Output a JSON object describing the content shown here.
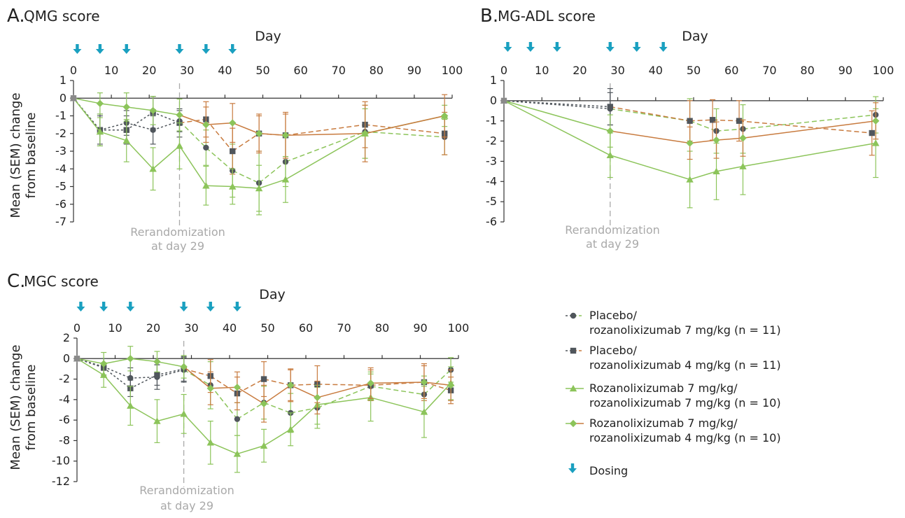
{
  "colors": {
    "dark": "#50565c",
    "orange": "#c87b3f",
    "green": "#8cc45a",
    "blue": "#1aa0c0",
    "rerand": "#a9a9a9"
  },
  "legend": {
    "items": [
      {
        "line1": "Placebo/",
        "line2": "rozanolixizumab 7 mg/kg (n = 11)",
        "marker": "circle",
        "before": "dark",
        "after": "green"
      },
      {
        "line1": "Placebo/",
        "line2": "rozanolixizumab 4 mg/kg (n = 11)",
        "marker": "square",
        "before": "dark",
        "after": "orange"
      },
      {
        "line1": "Rozanolixizumab 7 mg/kg/",
        "line2": "rozanolixizumab 7 mg/kg (n = 10)",
        "marker": "triangle",
        "before": "green",
        "after": "green"
      },
      {
        "line1": "Rozanolixizumab 7 mg/kg/",
        "line2": "rozanolixizumab 4 mg/kg (n = 10)",
        "marker": "diamond",
        "before": "green",
        "after": "orange"
      }
    ],
    "dosing_label": "Dosing"
  },
  "chart_data": [
    {
      "type": "line",
      "letter": "A.",
      "title": "QMG score",
      "xlabel": "Day",
      "ylabel_line1": "Mean (SEM) change",
      "ylabel_line2": "from baseline",
      "xlim": [
        0,
        100
      ],
      "ylim": [
        -7,
        1
      ],
      "xticks": [
        "0",
        "10",
        "20",
        "30",
        "40",
        "50",
        "60",
        "70",
        "80",
        "90",
        "100"
      ],
      "yticks": [
        "1",
        "0",
        "-1",
        "-2",
        "-3",
        "-4",
        "-5",
        "-6",
        "-7"
      ],
      "ytick_values": [
        1,
        0,
        -1,
        -2,
        -3,
        -4,
        -5,
        -6,
        -7
      ],
      "dosing_days": [
        1,
        7,
        14,
        28,
        35,
        42
      ],
      "rerand_day": 28,
      "rerand_line1": "Rerandomization",
      "rerand_line2": "at day 29",
      "series": [
        {
          "marker": "circle",
          "color_before": "dark",
          "color_after": "green",
          "x": [
            0,
            7,
            14,
            21,
            28,
            35,
            42,
            49,
            56,
            77,
            98
          ],
          "y": [
            0,
            -1.8,
            -1.4,
            -1.8,
            -1.3,
            -2.8,
            -4.1,
            -4.8,
            -3.6,
            -1.9,
            -2.2
          ],
          "err": [
            0,
            0.9,
            0.7,
            0.8,
            0.6,
            1.0,
            1.5,
            1.8,
            1.4,
            1.5,
            1.0
          ]
        },
        {
          "marker": "square",
          "color_before": "dark",
          "color_after": "orange",
          "x": [
            0,
            7,
            14,
            21,
            28,
            35,
            42,
            49,
            56,
            77,
            98
          ],
          "y": [
            0,
            -1.8,
            -1.8,
            -0.8,
            -1.4,
            -1.2,
            -3.0,
            -2.0,
            -2.1,
            -1.5,
            -2.0
          ],
          "err": [
            0,
            0.8,
            0.8,
            0.9,
            0.8,
            1.0,
            1.3,
            1.1,
            1.2,
            1.3,
            1.2
          ]
        },
        {
          "marker": "triangle",
          "color_before": "green",
          "color_after": "green",
          "x": [
            0,
            7,
            14,
            21,
            28,
            35,
            42,
            49,
            56,
            77,
            98
          ],
          "y": [
            0,
            -1.9,
            -2.4,
            -4.0,
            -2.7,
            -4.95,
            -5.0,
            -5.1,
            -4.6,
            -2.0,
            -1.0
          ],
          "err": [
            0,
            0.8,
            1.2,
            1.2,
            1.3,
            1.1,
            1.0,
            1.3,
            1.3,
            1.4,
            0.6
          ]
        },
        {
          "marker": "diamond",
          "color_before": "green",
          "color_after": "orange",
          "x": [
            0,
            7,
            14,
            21,
            28,
            35,
            42,
            49,
            56,
            77,
            98
          ],
          "y": [
            0,
            -0.3,
            -0.5,
            -0.7,
            -0.95,
            -1.5,
            -1.4,
            -2.0,
            -2.1,
            -2.0,
            -1.0
          ],
          "err": [
            0,
            0.6,
            0.8,
            0.8,
            0.9,
            1.0,
            1.1,
            1.0,
            1.3,
            1.6,
            1.2
          ]
        }
      ]
    },
    {
      "type": "line",
      "letter": "B.",
      "title": "MG-ADL score",
      "xlabel": "Day",
      "ylabel_line1": "",
      "ylabel_line2": "",
      "xlim": [
        0,
        100
      ],
      "ylim": [
        -6,
        1
      ],
      "xticks": [
        "0",
        "10",
        "20",
        "30",
        "40",
        "50",
        "60",
        "70",
        "80",
        "90",
        "100"
      ],
      "yticks": [
        "1",
        "0",
        "-1",
        "-2",
        "-3",
        "-4",
        "-5",
        "-6"
      ],
      "ytick_values": [
        1,
        0,
        -1,
        -2,
        -3,
        -4,
        -5,
        -6
      ],
      "dosing_days": [
        1,
        7,
        14,
        28,
        35,
        42
      ],
      "rerand_day": 28,
      "rerand_line1": "Rerandomization",
      "rerand_line2": "at day 29",
      "series": [
        {
          "marker": "circle",
          "color_before": "dark",
          "color_after": "green",
          "x": [
            0,
            28,
            49,
            56,
            63,
            98
          ],
          "y": [
            0,
            -0.4,
            -1.0,
            -1.5,
            -1.4,
            -0.7
          ],
          "err": [
            0,
            0.8,
            1.1,
            1.1,
            1.2,
            0.9
          ]
        },
        {
          "marker": "square",
          "color_before": "dark",
          "color_after": "orange",
          "x": [
            0,
            28,
            49,
            55,
            62,
            97
          ],
          "y": [
            0,
            -0.3,
            -1.0,
            -0.95,
            -1.0,
            -1.6
          ],
          "err": [
            0,
            0.9,
            1.0,
            1.0,
            1.0,
            1.1
          ]
        },
        {
          "marker": "triangle",
          "color_before": "green",
          "color_after": "green",
          "x": [
            0,
            28,
            49,
            56,
            63,
            98
          ],
          "y": [
            0,
            -2.7,
            -3.9,
            -3.5,
            -3.25,
            -2.1
          ],
          "err": [
            0,
            1.1,
            1.4,
            1.4,
            1.4,
            1.7
          ]
        },
        {
          "marker": "diamond",
          "color_before": "green",
          "color_after": "orange",
          "x": [
            0,
            28,
            49,
            56,
            63,
            98
          ],
          "y": [
            0,
            -1.5,
            -2.1,
            -1.95,
            -1.85,
            -1.0
          ],
          "err": [
            0,
            0.8,
            0.8,
            0.9,
            0.9,
            0.9
          ]
        }
      ]
    },
    {
      "type": "line",
      "letter": "C.",
      "title": "MGC score",
      "xlabel": "Day",
      "ylabel_line1": "Mean (SEM) change",
      "ylabel_line2": "from baseline",
      "xlim": [
        0,
        100
      ],
      "ylim": [
        -12,
        2
      ],
      "xticks": [
        "0",
        "10",
        "20",
        "30",
        "40",
        "50",
        "60",
        "70",
        "80",
        "90",
        "100"
      ],
      "yticks": [
        "2",
        "0",
        "-2",
        "-4",
        "-6",
        "-8",
        "-10",
        "-12"
      ],
      "ytick_values": [
        2,
        0,
        -2,
        -4,
        -6,
        -8,
        -10,
        -12
      ],
      "dosing_days": [
        1,
        7,
        14,
        28,
        35,
        42
      ],
      "rerand_day": 28,
      "rerand_line1": "Rerandomization",
      "rerand_line2": "at day 29",
      "series": [
        {
          "marker": "circle",
          "color_before": "dark",
          "color_after": "green",
          "x": [
            0,
            7,
            14,
            21,
            28,
            35,
            42,
            49,
            56,
            63,
            77,
            91,
            98
          ],
          "y": [
            0,
            -0.8,
            -1.9,
            -1.8,
            -1.1,
            -2.6,
            -5.9,
            -4.3,
            -5.3,
            -4.8,
            -2.7,
            -3.5,
            -1.1
          ],
          "err": [
            0,
            0.8,
            1.0,
            1.2,
            1.2,
            2.3,
            1.6,
            1.6,
            1.9,
            2.0,
            1.4,
            1.8,
            1.2
          ]
        },
        {
          "marker": "square",
          "color_before": "dark",
          "color_after": "orange",
          "x": [
            0,
            7,
            14,
            21,
            28,
            35,
            42,
            49,
            56,
            63,
            77,
            91,
            98
          ],
          "y": [
            0,
            -0.9,
            -2.9,
            -1.6,
            -1.0,
            -1.7,
            -3.4,
            -2.0,
            -2.6,
            -2.5,
            -2.6,
            -2.3,
            -3.1
          ],
          "err": [
            0,
            0.9,
            0.8,
            1.0,
            1.2,
            1.6,
            1.6,
            1.7,
            1.5,
            1.8,
            1.5,
            1.8,
            1.3
          ]
        },
        {
          "marker": "triangle",
          "color_before": "green",
          "color_after": "green",
          "x": [
            0,
            7,
            14,
            21,
            28,
            35,
            42,
            49,
            56,
            63,
            77,
            91,
            98
          ],
          "y": [
            0,
            -1.6,
            -4.6,
            -6.1,
            -5.4,
            -8.2,
            -9.3,
            -8.5,
            -6.9,
            -4.5,
            -3.8,
            -5.2,
            -2.4
          ],
          "err": [
            0,
            1.2,
            1.9,
            2.1,
            1.9,
            2.1,
            1.8,
            1.6,
            1.6,
            1.9,
            2.3,
            2.5,
            1.6
          ]
        },
        {
          "marker": "diamond",
          "color_before": "green",
          "color_after": "orange",
          "x": [
            0,
            7,
            14,
            21,
            28,
            35,
            42,
            49,
            56,
            63,
            77,
            91,
            98
          ],
          "y": [
            0,
            -0.5,
            0.0,
            -0.3,
            -0.8,
            -2.9,
            -2.8,
            -4.4,
            -2.6,
            -3.8,
            -2.4,
            -2.3,
            -2.6
          ],
          "err": [
            0,
            1.1,
            1.2,
            1.0,
            1.1,
            1.6,
            1.5,
            1.8,
            1.6,
            1.6,
            1.5,
            1.6,
            1.5
          ]
        }
      ]
    }
  ]
}
